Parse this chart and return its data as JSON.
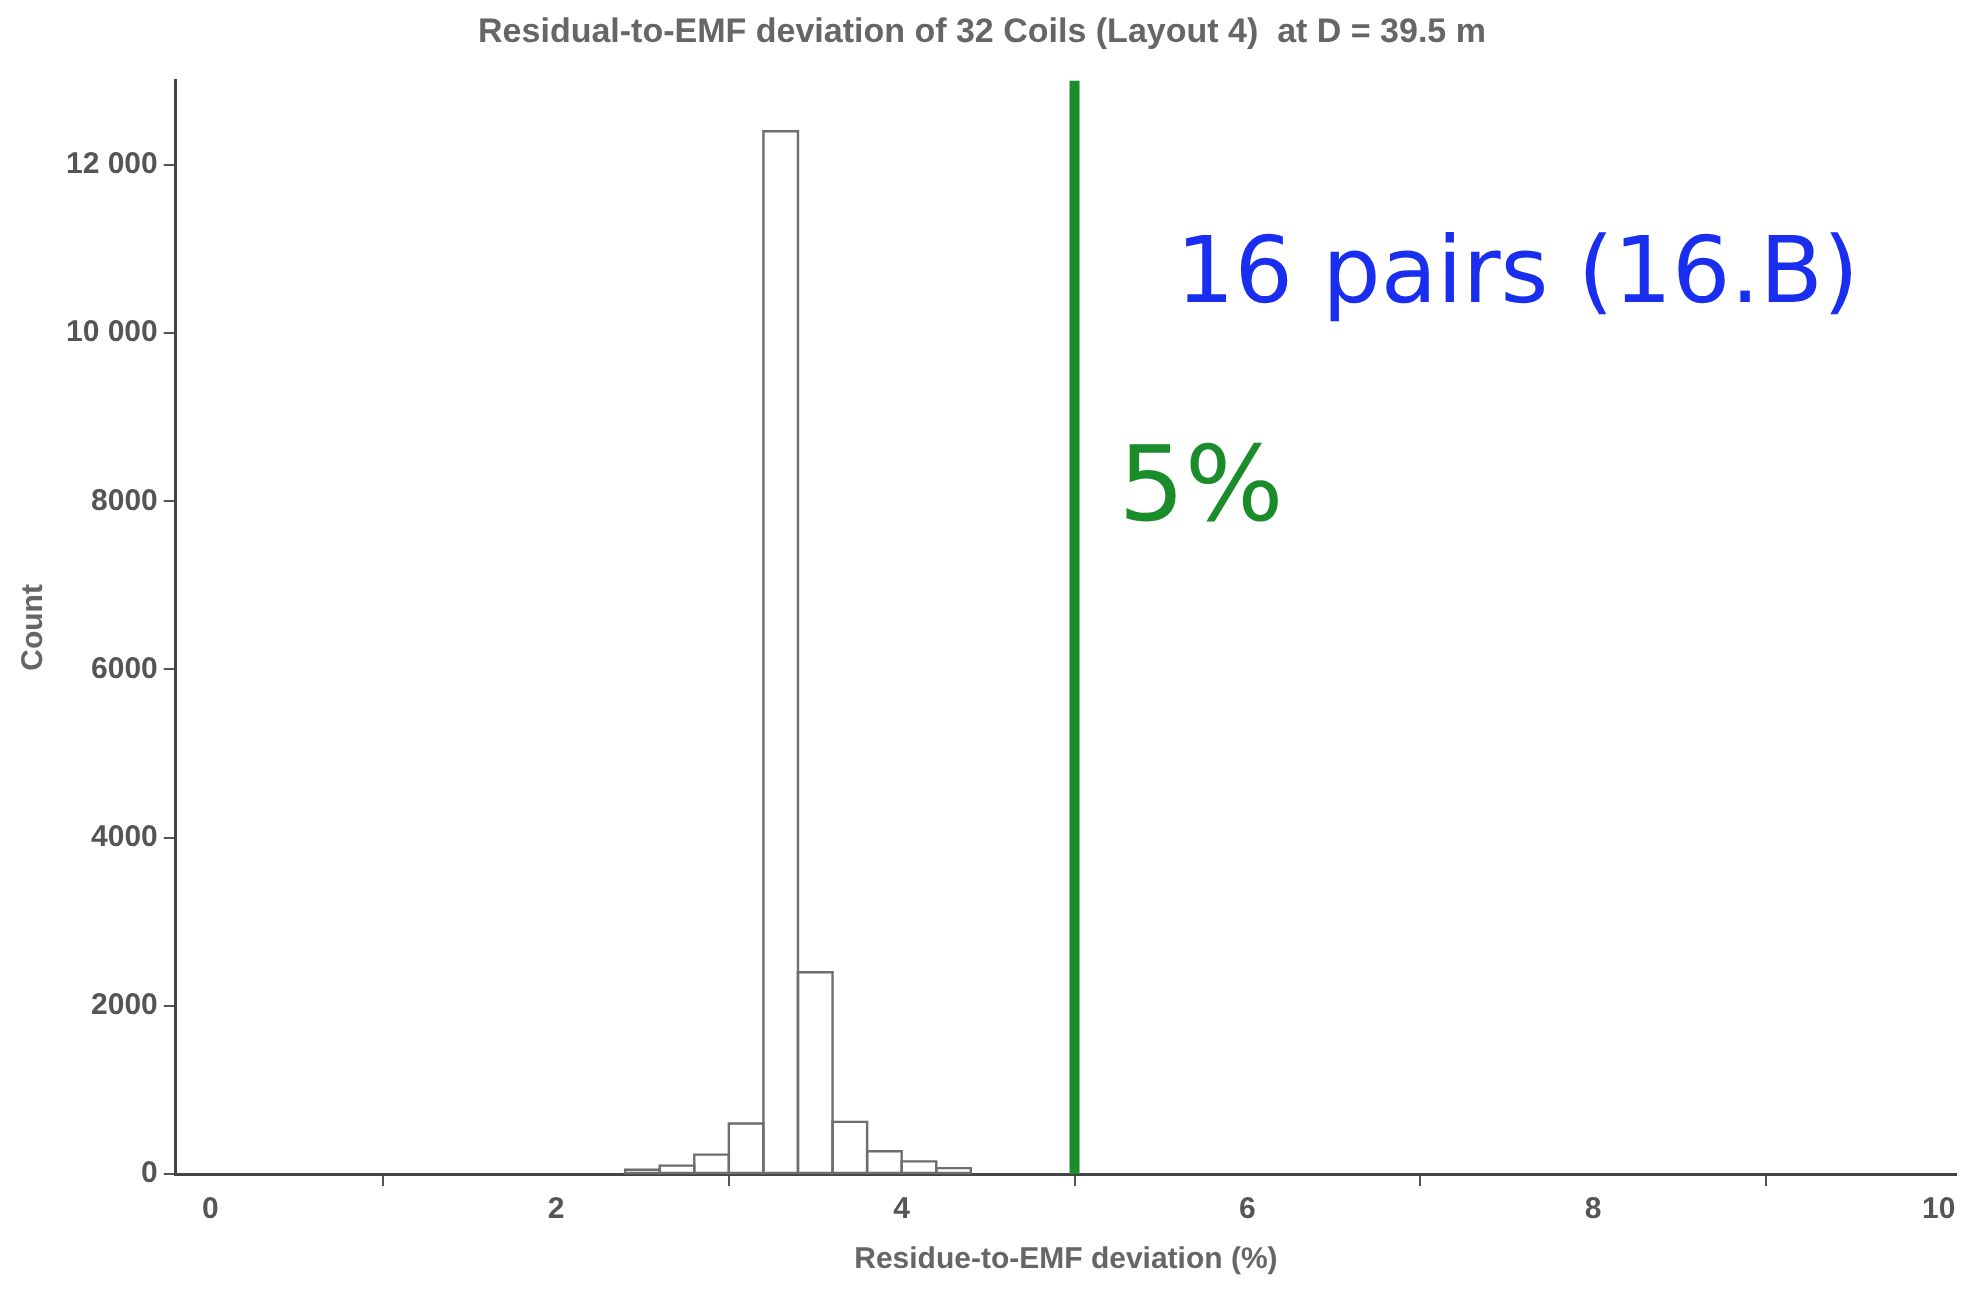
{
  "chart_data": {
    "type": "histogram",
    "title": "Residual-to-EMF deviation of 32 Coils (Layout 4)  at D = 39.5 m",
    "xlabel": "Residue-to-EMF deviation (%)",
    "ylabel": "Count",
    "bins": [
      2.4,
      2.6,
      2.8,
      3.0,
      3.2,
      3.4,
      3.6,
      3.8,
      4.0,
      4.2,
      4.4
    ],
    "values": [
      50,
      100,
      230,
      600,
      12400,
      2400,
      620,
      270,
      150,
      70
    ],
    "color": "#6e6e6e",
    "xlim": [
      -0.2,
      10.1
    ],
    "xticks": [
      0,
      2,
      4,
      6,
      8,
      10
    ],
    "ylim": [
      0,
      13000
    ],
    "yticks": [
      0,
      2000,
      4000,
      6000,
      8000,
      {
        "value": 10000,
        "label": "10 000"
      },
      {
        "value": 12000,
        "label": "12 000"
      }
    ],
    "grid": false,
    "legend": false,
    "ref_lines": [
      {
        "axis": "x",
        "value": 5,
        "label": "5%",
        "color": "#1a8c2a"
      }
    ],
    "annotations": [
      "16 pairs (16.B)"
    ]
  }
}
